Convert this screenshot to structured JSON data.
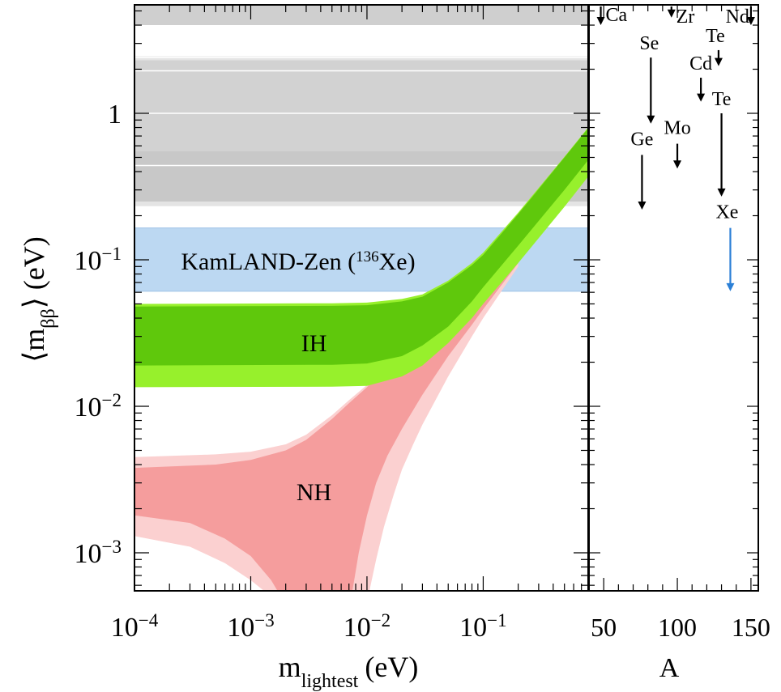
{
  "chart_data": [
    {
      "type": "area",
      "panel": "main",
      "xlabel": {
        "base": "m",
        "sub": "lightest",
        "unit": "(eV)"
      },
      "ylabel": {
        "left": "⟨m",
        "sub": "ββ",
        "right": "⟩ (eV)"
      },
      "xscale": "log",
      "yscale": "log",
      "xlim": [
        0.0001,
        0.8
      ],
      "ylim": [
        0.00055,
        5.5
      ],
      "x_ticks": [
        {
          "value": 0.0001,
          "base": "10",
          "exp": "−4"
        },
        {
          "value": 0.001,
          "base": "10",
          "exp": "−3"
        },
        {
          "value": 0.01,
          "base": "10",
          "exp": "−2"
        },
        {
          "value": 0.1,
          "base": "10",
          "exp": "−1"
        }
      ],
      "y_ticks": [
        {
          "value": 0.001,
          "base": "10",
          "exp": "−3"
        },
        {
          "value": 0.01,
          "base": "10",
          "exp": "−2"
        },
        {
          "value": 0.1,
          "base": "10",
          "exp": "−1"
        },
        {
          "value": 1,
          "base": "1",
          "exp": ""
        }
      ],
      "excluded_bands": [
        {
          "y": [
            0.23,
            5.5
          ],
          "color": "#e4e4e4"
        },
        {
          "y": [
            0.35,
            2.3
          ],
          "color": "#d2d2d2"
        },
        {
          "y": [
            0.25,
            0.55
          ],
          "color": "#c8c8c8"
        },
        {
          "y": [
            4.0,
            5.5
          ],
          "color": "#cfcfcf"
        }
      ],
      "kamland_band": {
        "y": [
          0.061,
          0.165
        ],
        "color": "#bcd8f2",
        "label_main": "KamLAND-Zen (",
        "label_sup": "136",
        "label_tail": "Xe)"
      },
      "regions": [
        {
          "name": "IH",
          "outer_color": "#97f02c",
          "inner_color": "#5fc80c",
          "outer_upper": [
            [
              0.0001,
              0.05
            ],
            [
              0.005,
              0.0505
            ],
            [
              0.01,
              0.051
            ],
            [
              0.02,
              0.054
            ],
            [
              0.03,
              0.058
            ],
            [
              0.05,
              0.072
            ],
            [
              0.08,
              0.095
            ],
            [
              0.1,
              0.112
            ],
            [
              0.2,
              0.21
            ],
            [
              0.5,
              0.505
            ],
            [
              0.8,
              0.8
            ]
          ],
          "outer_lower": [
            [
              0.0001,
              0.0135
            ],
            [
              0.005,
              0.0136
            ],
            [
              0.01,
              0.0138
            ],
            [
              0.02,
              0.016
            ],
            [
              0.03,
              0.019
            ],
            [
              0.05,
              0.027
            ],
            [
              0.08,
              0.04
            ],
            [
              0.1,
              0.05
            ],
            [
              0.2,
              0.095
            ],
            [
              0.5,
              0.23
            ],
            [
              0.8,
              0.37
            ]
          ],
          "inner_upper": [
            [
              0.0001,
              0.048
            ],
            [
              0.005,
              0.0485
            ],
            [
              0.01,
              0.049
            ],
            [
              0.02,
              0.052
            ],
            [
              0.03,
              0.056
            ],
            [
              0.05,
              0.07
            ],
            [
              0.08,
              0.092
            ],
            [
              0.1,
              0.108
            ],
            [
              0.2,
              0.205
            ],
            [
              0.5,
              0.5
            ],
            [
              0.8,
              0.79
            ]
          ],
          "inner_lower": [
            [
              0.0001,
              0.019
            ],
            [
              0.005,
              0.0192
            ],
            [
              0.01,
              0.0196
            ],
            [
              0.02,
              0.022
            ],
            [
              0.03,
              0.026
            ],
            [
              0.05,
              0.035
            ],
            [
              0.08,
              0.052
            ],
            [
              0.1,
              0.065
            ],
            [
              0.2,
              0.125
            ],
            [
              0.5,
              0.3
            ],
            [
              0.8,
              0.48
            ]
          ]
        },
        {
          "name": "NH",
          "outer_color": "#fbd0d0",
          "inner_color": "#f59d9d",
          "outer_upper": [
            [
              0.0001,
              0.0045
            ],
            [
              0.0005,
              0.0047
            ],
            [
              0.001,
              0.0049
            ],
            [
              0.002,
              0.0055
            ],
            [
              0.003,
              0.0064
            ],
            [
              0.005,
              0.0087
            ],
            [
              0.007,
              0.011
            ],
            [
              0.01,
              0.014
            ],
            [
              0.015,
              0.02
            ],
            [
              0.02,
              0.025
            ],
            [
              0.03,
              0.034
            ],
            [
              0.05,
              0.055
            ],
            [
              0.1,
              0.105
            ],
            [
              0.2,
              0.2
            ]
          ],
          "outer_lower_left": [
            [
              0.0001,
              0.0013
            ],
            [
              0.0003,
              0.0011
            ],
            [
              0.0006,
              0.00085
            ],
            [
              0.001,
              0.00065
            ],
            [
              0.0013,
              0.00055
            ]
          ],
          "outer_lower_right": [
            [
              0.0105,
              0.00055
            ],
            [
              0.012,
              0.0009
            ],
            [
              0.014,
              0.0015
            ],
            [
              0.017,
              0.0025
            ],
            [
              0.02,
              0.0037
            ],
            [
              0.025,
              0.0055
            ],
            [
              0.03,
              0.0075
            ],
            [
              0.05,
              0.016
            ],
            [
              0.08,
              0.03
            ],
            [
              0.1,
              0.04
            ],
            [
              0.2,
              0.09
            ]
          ],
          "inner_upper": [
            [
              0.0001,
              0.0038
            ],
            [
              0.0005,
              0.004
            ],
            [
              0.001,
              0.0043
            ],
            [
              0.002,
              0.005
            ],
            [
              0.003,
              0.0059
            ],
            [
              0.005,
              0.0082
            ],
            [
              0.007,
              0.0105
            ],
            [
              0.01,
              0.0135
            ],
            [
              0.015,
              0.0195
            ],
            [
              0.02,
              0.0245
            ],
            [
              0.03,
              0.034
            ],
            [
              0.05,
              0.055
            ],
            [
              0.1,
              0.105
            ],
            [
              0.2,
              0.2
            ]
          ],
          "inner_lower_left": [
            [
              0.0001,
              0.0018
            ],
            [
              0.0003,
              0.0016
            ],
            [
              0.0006,
              0.00125
            ],
            [
              0.001,
              0.00095
            ],
            [
              0.0015,
              0.00065
            ],
            [
              0.0017,
              0.00055
            ]
          ],
          "inner_lower_right": [
            [
              0.0075,
              0.00055
            ],
            [
              0.0085,
              0.001
            ],
            [
              0.01,
              0.0018
            ],
            [
              0.012,
              0.003
            ],
            [
              0.015,
              0.0046
            ],
            [
              0.02,
              0.007
            ],
            [
              0.03,
              0.012
            ],
            [
              0.05,
              0.022
            ],
            [
              0.08,
              0.036
            ],
            [
              0.1,
              0.046
            ],
            [
              0.2,
              0.095
            ]
          ]
        }
      ],
      "region_labels": [
        {
          "text": "IH",
          "x": 0.0035,
          "y": 0.027
        },
        {
          "text": "NH",
          "x": 0.0035,
          "y": 0.0026
        }
      ]
    },
    {
      "type": "scatter",
      "panel": "right",
      "xlabel": "A",
      "xlim": [
        40,
        155
      ],
      "ylim": [
        0.00055,
        5.5
      ],
      "x_ticks": [
        {
          "value": 50,
          "label": "50"
        },
        {
          "value": 100,
          "label": "100"
        },
        {
          "value": 150,
          "label": "150"
        }
      ],
      "limits": [
        {
          "element": "Ca",
          "A": 48,
          "y_top": 5.5,
          "y_bottom": 4.0,
          "color": "#000000"
        },
        {
          "element": "Zr",
          "A": 96,
          "y_top": 5.5,
          "y_bottom": 4.5,
          "color": "#000000"
        },
        {
          "element": "Nd",
          "A": 150,
          "y_top": 5.5,
          "y_bottom": 4.0,
          "color": "#000000"
        },
        {
          "element": "Se",
          "A": 82,
          "y_top": 2.4,
          "y_bottom": 0.85,
          "color": "#000000"
        },
        {
          "element": "Te",
          "A": 128,
          "y_top": 2.7,
          "y_bottom": 2.1,
          "color": "#000000"
        },
        {
          "element": "Cd",
          "A": 116,
          "y_top": 1.75,
          "y_bottom": 1.2,
          "color": "#000000"
        },
        {
          "element": "Te",
          "A": 130,
          "y_top": 1.0,
          "y_bottom": 0.27,
          "color": "#000000"
        },
        {
          "element": "Mo",
          "A": 100,
          "y_top": 0.62,
          "y_bottom": 0.42,
          "color": "#000000"
        },
        {
          "element": "Ge",
          "A": 76,
          "y_top": 0.52,
          "y_bottom": 0.22,
          "color": "#000000"
        },
        {
          "element": "Xe",
          "A": 136,
          "y_top": 0.165,
          "y_bottom": 0.061,
          "color": "#2b7fd6"
        }
      ]
    }
  ],
  "colors": {
    "axis": "#000000",
    "kamland_limit": "#2b7fd6"
  }
}
